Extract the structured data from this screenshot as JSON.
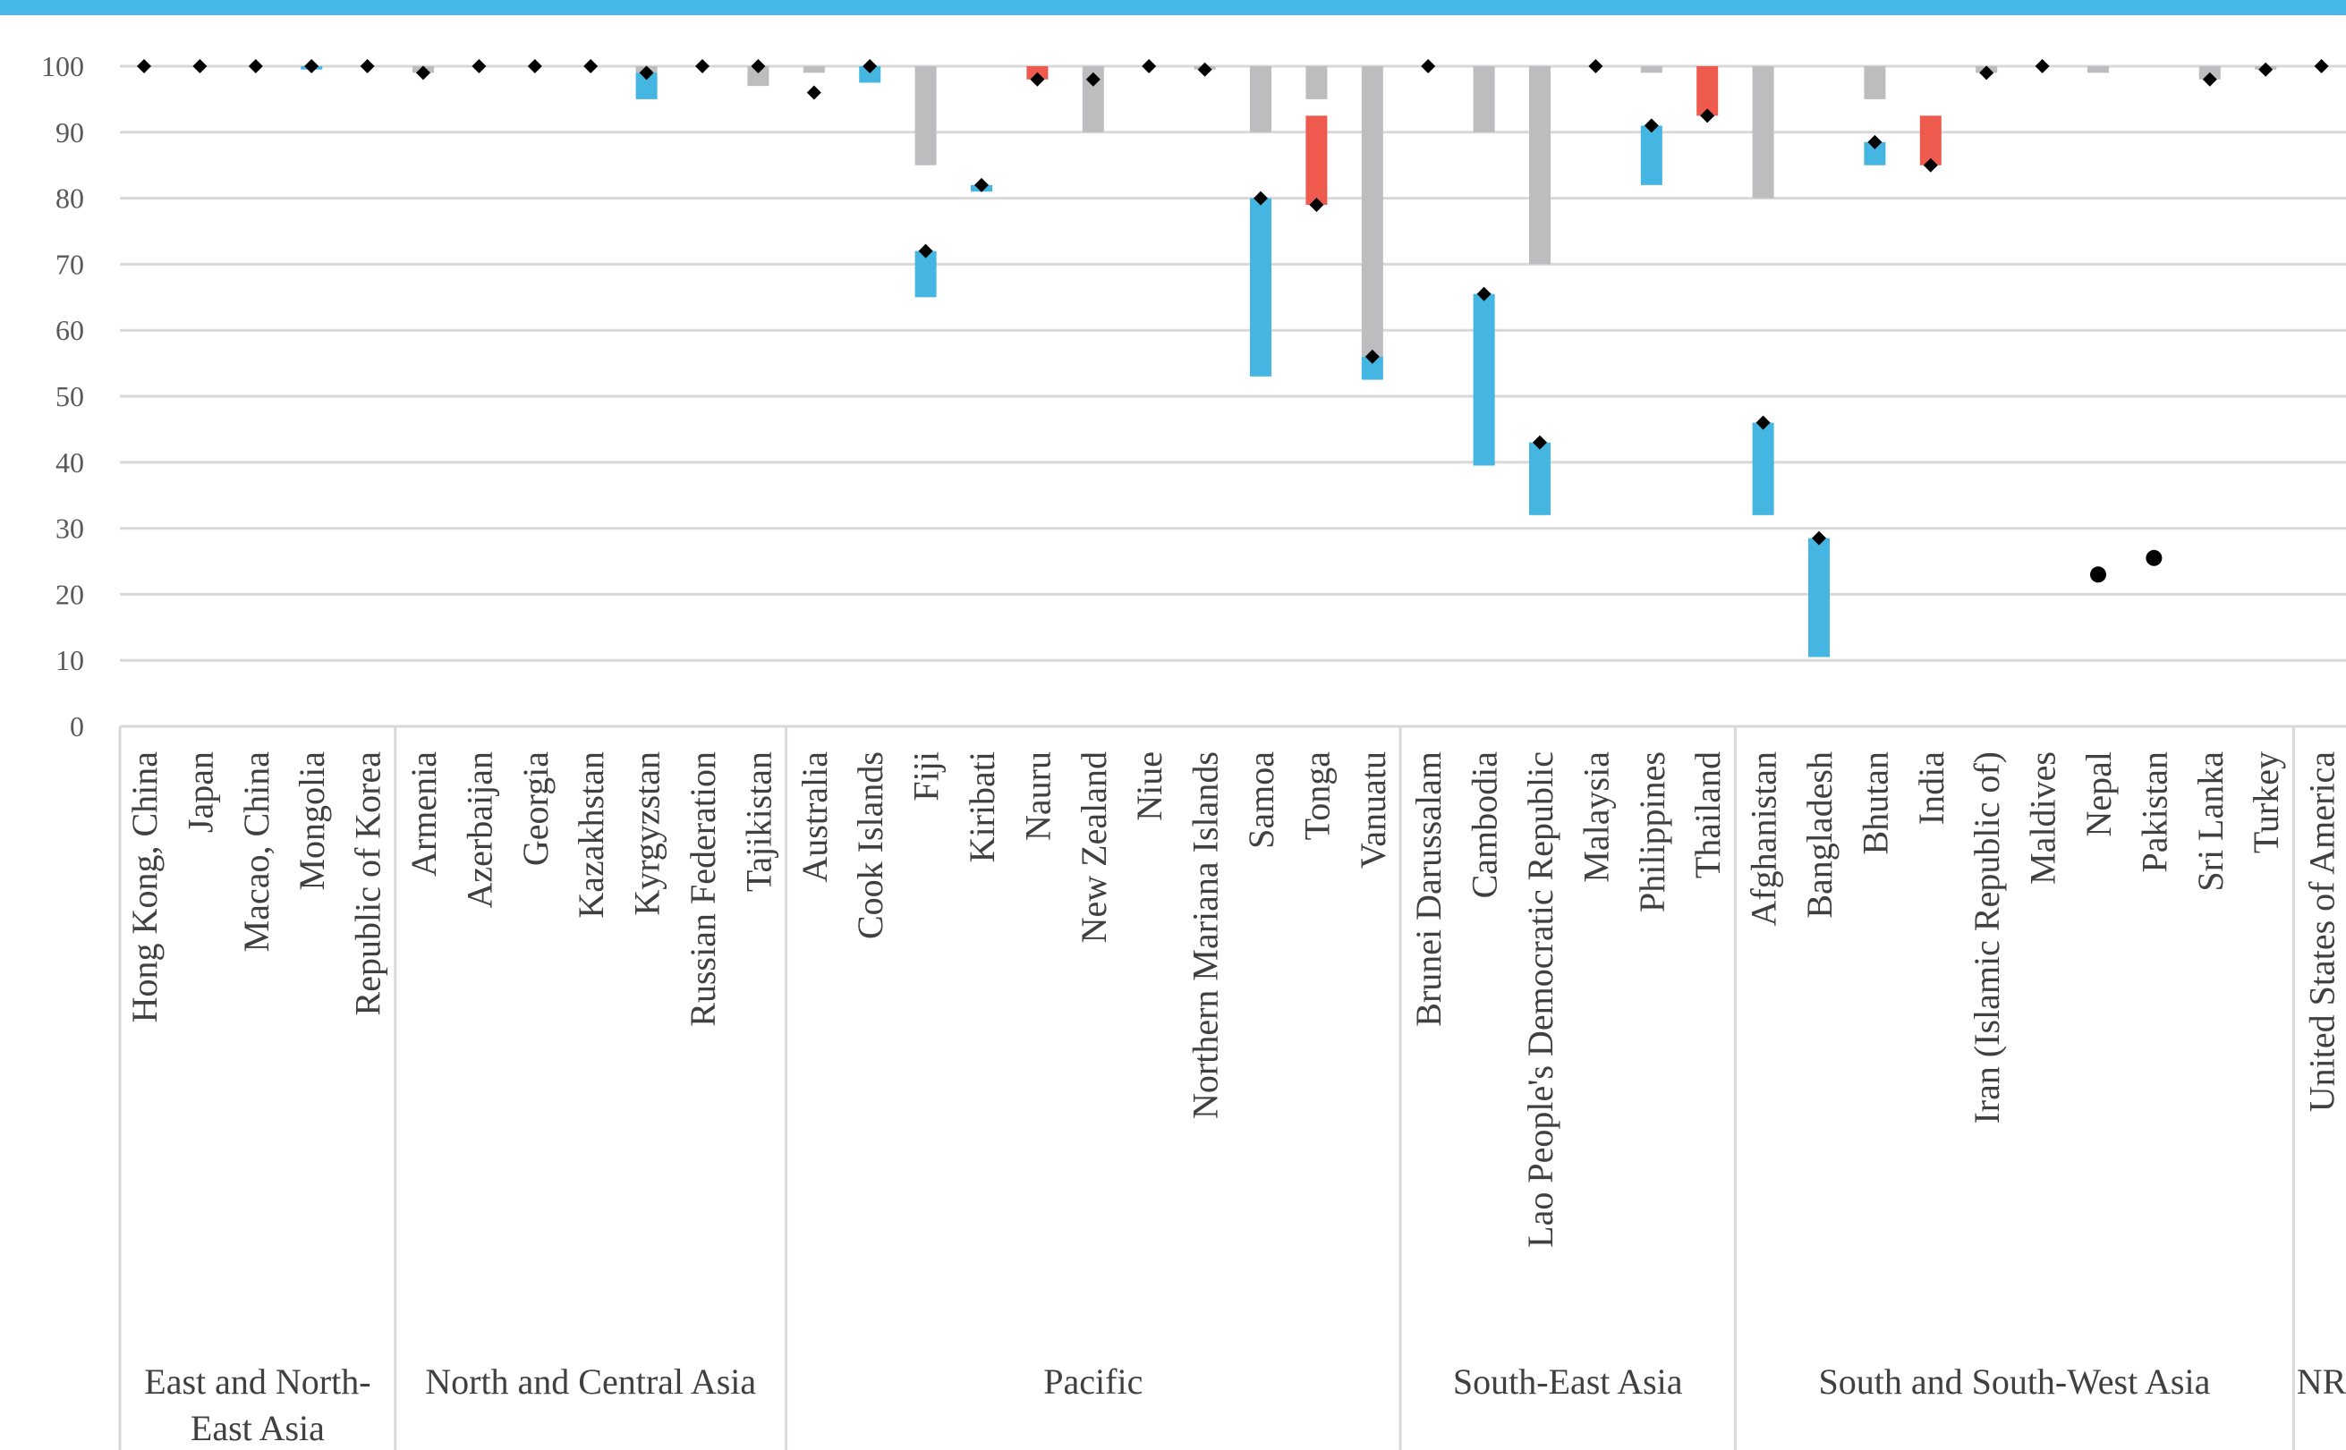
{
  "colors": {
    "bar": "#bdbcbe",
    "up": "#45b6e2",
    "down": "#ef5a4f",
    "marker": "#000000",
    "gridline": "#d9d9d9",
    "top_bar": "#45b8e8"
  },
  "chart_data": {
    "type": "bar",
    "title": "",
    "xlabel": "",
    "ylabel": "",
    "ylim": [
      0,
      100
    ],
    "yticks": [
      0,
      10,
      20,
      30,
      40,
      50,
      60,
      70,
      80,
      90,
      100
    ],
    "grid": true,
    "legend": "none",
    "groups": [
      {
        "name": "East and North-East Asia",
        "name_lines": [
          "East and North-",
          "East Asia"
        ],
        "countries": [
          {
            "name": "Hong Kong, China",
            "bar": 100,
            "change_from": 100,
            "change_to": 100,
            "value": 100
          },
          {
            "name": "Japan",
            "bar": 100,
            "change_from": 100,
            "change_to": 100,
            "value": 100
          },
          {
            "name": "Macao, China",
            "bar": 100,
            "change_from": 100,
            "change_to": 100,
            "value": 100
          },
          {
            "name": "Mongolia",
            "bar": 100,
            "change_from": 99.5,
            "change_to": 100,
            "value": 100
          },
          {
            "name": "Republic of Korea",
            "bar": 100,
            "change_from": 100,
            "change_to": 100,
            "value": 100
          }
        ]
      },
      {
        "name": "North and Central Asia",
        "name_lines": [
          "North and Central Asia"
        ],
        "countries": [
          {
            "name": "Armenia",
            "bar": 99,
            "change_from": 99,
            "change_to": 99,
            "value": 99
          },
          {
            "name": "Azerbaijan",
            "bar": 100,
            "change_from": 100,
            "change_to": 100,
            "value": 100
          },
          {
            "name": "Georgia",
            "bar": 100,
            "change_from": 100,
            "change_to": 100,
            "value": 100
          },
          {
            "name": "Kazakhstan",
            "bar": 100,
            "change_from": 100,
            "change_to": 100,
            "value": 100
          },
          {
            "name": "Kyrgyzstan",
            "bar": 99,
            "change_from": 95,
            "change_to": 99,
            "value": 99
          },
          {
            "name": "Russian Federation",
            "bar": 100,
            "change_from": 100,
            "change_to": 100,
            "value": 100
          },
          {
            "name": "Tajikistan",
            "bar": 97,
            "change_from": 100,
            "change_to": 100,
            "value": 100
          }
        ]
      },
      {
        "name": "Pacific",
        "name_lines": [
          "Pacific"
        ],
        "countries": [
          {
            "name": "Australia",
            "bar": 99,
            "change_from": 96,
            "change_to": 96,
            "value": 96
          },
          {
            "name": "Cook Islands",
            "bar": 100,
            "change_from": 97.5,
            "change_to": 100,
            "value": 100
          },
          {
            "name": "Fiji",
            "bar": 85,
            "change_from": 65,
            "change_to": 72,
            "value": 72
          },
          {
            "name": "Kiribati",
            "bar": 100,
            "change_from": 81,
            "change_to": 82,
            "value": 82
          },
          {
            "name": "Nauru",
            "bar": 100,
            "change_from": 100,
            "change_to": 98,
            "value": 98
          },
          {
            "name": "New Zealand",
            "bar": 90,
            "change_from": 98,
            "change_to": 98,
            "value": 98
          },
          {
            "name": "Niue",
            "bar": 100,
            "change_from": 100,
            "change_to": 100,
            "value": 100
          },
          {
            "name": "Northern Mariana Islands",
            "bar": 99.5,
            "change_from": 99.5,
            "change_to": 99.5,
            "value": 99.5
          },
          {
            "name": "Samoa",
            "bar": 90,
            "change_from": 53,
            "change_to": 80,
            "value": 80
          },
          {
            "name": "Tonga",
            "bar": 95,
            "change_from": 92.5,
            "change_to": 79,
            "value": 79
          },
          {
            "name": "Vanuatu",
            "bar": 56,
            "change_from": 52.5,
            "change_to": 56,
            "value": 56
          }
        ]
      },
      {
        "name": "South-East Asia",
        "name_lines": [
          "South-East Asia"
        ],
        "countries": [
          {
            "name": "Brunei Darussalam",
            "bar": 100,
            "change_from": 100,
            "change_to": 100,
            "value": 100
          },
          {
            "name": "Cambodia",
            "bar": 90,
            "change_from": 39.5,
            "change_to": 65.5,
            "value": 65.5
          },
          {
            "name": "Lao People's Democratic Republic",
            "bar": 70,
            "change_from": 32,
            "change_to": 43,
            "value": 43
          },
          {
            "name": "Malaysia",
            "bar": 100,
            "change_from": 100,
            "change_to": 100,
            "value": 100
          },
          {
            "name": "Philippines",
            "bar": 99,
            "change_from": 82,
            "change_to": 91,
            "value": 91
          },
          {
            "name": "Thailand",
            "bar": 100,
            "change_from": 100,
            "change_to": 92.5,
            "value": 92.5
          }
        ]
      },
      {
        "name": "South and South-West Asia",
        "name_lines": [
          "South and South-West Asia"
        ],
        "countries": [
          {
            "name": "Afghanistan",
            "bar": 80,
            "change_from": 32,
            "change_to": 46,
            "value": 46
          },
          {
            "name": "Bangladesh",
            "bar": 100,
            "change_from": 10.5,
            "change_to": 28.5,
            "value": 28.5
          },
          {
            "name": "Bhutan",
            "bar": 95,
            "change_from": 85,
            "change_to": 88.5,
            "value": 88.5
          },
          {
            "name": "India",
            "bar": 100,
            "change_from": 92.5,
            "change_to": 85,
            "value": 85
          },
          {
            "name": "Iran (Islamic Republic of)",
            "bar": 99,
            "change_from": 99,
            "change_to": 99,
            "value": 99
          },
          {
            "name": "Maldives",
            "bar": 100,
            "change_from": 100,
            "change_to": 100,
            "value": 100
          },
          {
            "name": "Nepal",
            "bar": 99,
            "change_from": 23,
            "change_to": 23,
            "value": 23,
            "marker": "circle"
          },
          {
            "name": "Pakistan",
            "bar": 100,
            "change_from": 25.5,
            "change_to": 25.5,
            "value": 25.5,
            "marker": "circle"
          },
          {
            "name": "Sri Lanka",
            "bar": 98,
            "change_from": 98,
            "change_to": 98,
            "value": 98
          },
          {
            "name": "Turkey",
            "bar": 99.5,
            "change_from": 99.5,
            "change_to": 99.5,
            "value": 99.5
          }
        ]
      },
      {
        "name": "NR",
        "name_lines": [
          "NR"
        ],
        "countries": [
          {
            "name": "United States of America",
            "bar": 100,
            "change_from": 100,
            "change_to": 100,
            "value": 100
          }
        ]
      }
    ]
  }
}
